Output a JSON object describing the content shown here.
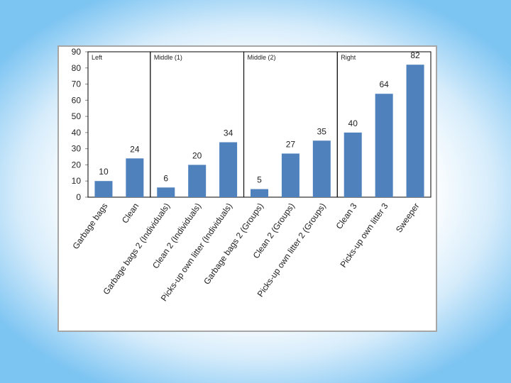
{
  "colors": {
    "bar": "#4f81bd",
    "background_edge": "#7cc4f2",
    "frame_border": "#a6a6a6"
  },
  "chart_data": {
    "type": "bar",
    "title": "",
    "xlabel": "",
    "ylabel": "",
    "ylim": [
      0,
      90
    ],
    "yticks": [
      0,
      10,
      20,
      30,
      40,
      50,
      60,
      70,
      80,
      90
    ],
    "grid": false,
    "legend": "none",
    "categories": [
      "Garbage bags",
      "Clean",
      "Garbage bags 2 (Individuals)",
      "Clean 2 (Individuals)",
      "Picks-up own litter (Individuals)",
      "Garbage bags 2 (Groups)",
      "Clean 2 (Groups)",
      "Picks-up own litter 2 (Groups)",
      "Clean 3",
      "Picks-up own litter 3",
      "Sweeper"
    ],
    "values": [
      10,
      24,
      6,
      20,
      34,
      5,
      27,
      35,
      40,
      64,
      82
    ],
    "data_labels": [
      "10",
      "24",
      "6",
      "20",
      "34",
      "5",
      "27",
      "35",
      "40",
      "64",
      "82"
    ],
    "regions": [
      {
        "label": "Left",
        "categories": [
          0,
          1
        ]
      },
      {
        "label": "Middle (1)",
        "categories": [
          2,
          3,
          4
        ]
      },
      {
        "label": "Middle (2)",
        "categories": [
          5,
          6,
          7
        ]
      },
      {
        "label": "Right",
        "categories": [
          8,
          9,
          10
        ]
      }
    ]
  }
}
